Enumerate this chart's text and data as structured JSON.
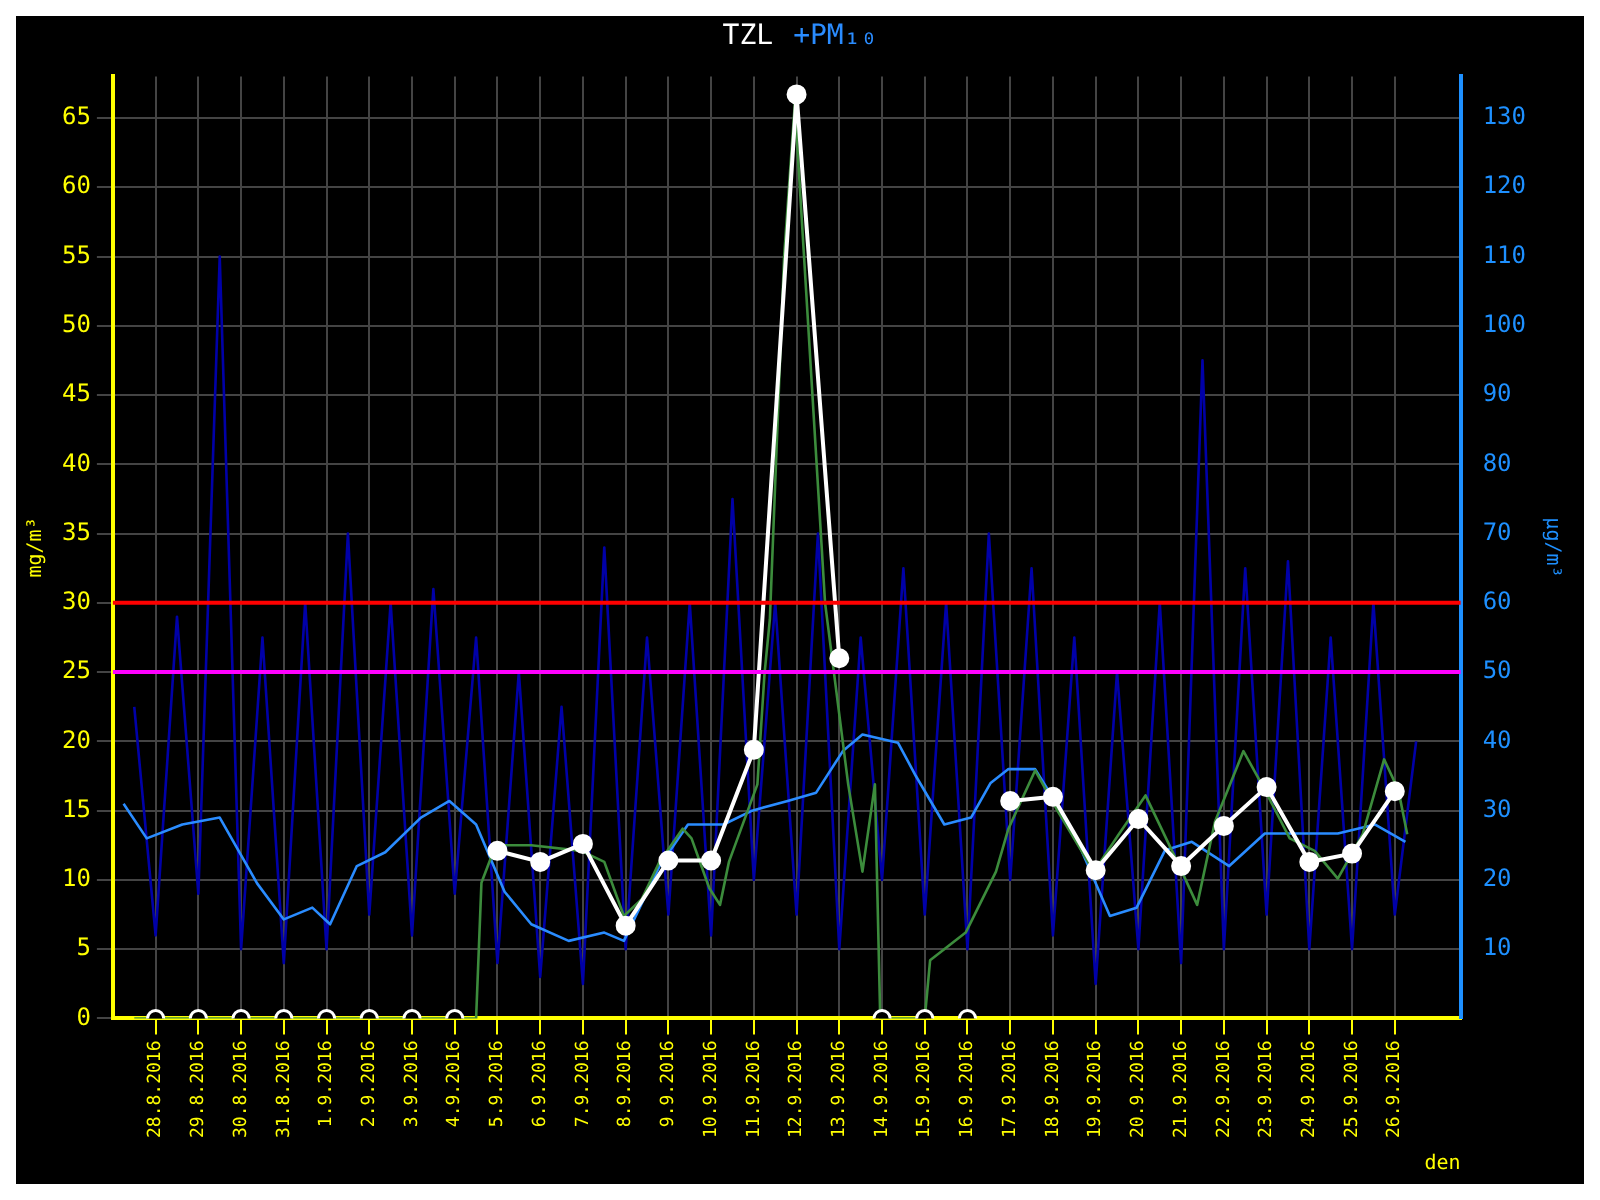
{
  "chart_data": {
    "type": "line",
    "ylabel": "mg/m³",
    "y2label": "µg/m³",
    "xlabel": "den",
    "legend": "top",
    "grid": true,
    "xlim": [
      "2016-08-27T00:00",
      "2016-09-27T13:00"
    ],
    "xticks": [
      {
        "value": "2016-08-28",
        "label": "28.8.2016"
      },
      {
        "value": "2016-08-29",
        "label": "29.8.2016"
      },
      {
        "value": "2016-08-30",
        "label": "30.8.2016"
      },
      {
        "value": "2016-08-31",
        "label": "31.8.2016"
      },
      {
        "value": "2016-09-01",
        "label": "1.9.2016"
      },
      {
        "value": "2016-09-02",
        "label": "2.9.2016"
      },
      {
        "value": "2016-09-03",
        "label": "3.9.2016"
      },
      {
        "value": "2016-09-04",
        "label": "4.9.2016"
      },
      {
        "value": "2016-09-05",
        "label": "5.9.2016"
      },
      {
        "value": "2016-09-06",
        "label": "6.9.2016"
      },
      {
        "value": "2016-09-07",
        "label": "7.9.2016"
      },
      {
        "value": "2016-09-08",
        "label": "8.9.2016"
      },
      {
        "value": "2016-09-09",
        "label": "9.9.2016"
      },
      {
        "value": "2016-09-10",
        "label": "10.9.2016"
      },
      {
        "value": "2016-09-11",
        "label": "11.9.2016"
      },
      {
        "value": "2016-09-12",
        "label": "12.9.2016"
      },
      {
        "value": "2016-09-13",
        "label": "13.9.2016"
      },
      {
        "value": "2016-09-14",
        "label": "14.9.2016"
      },
      {
        "value": "2016-09-15",
        "label": "15.9.2016"
      },
      {
        "value": "2016-09-16",
        "label": "16.9.2016"
      },
      {
        "value": "2016-09-17",
        "label": "17.9.2016"
      },
      {
        "value": "2016-09-18",
        "label": "18.9.2016"
      },
      {
        "value": "2016-09-19",
        "label": "19.9.2016"
      },
      {
        "value": "2016-09-20",
        "label": "20.9.2016"
      },
      {
        "value": "2016-09-21",
        "label": "21.9.2016"
      },
      {
        "value": "2016-09-22",
        "label": "22.9.2016"
      },
      {
        "value": "2016-09-23",
        "label": "23.9.2016"
      },
      {
        "value": "2016-09-24",
        "label": "24.9.2016"
      },
      {
        "value": "2016-09-25",
        "label": "25.9.2016"
      },
      {
        "value": "2016-09-26",
        "label": "26.9.2016"
      }
    ],
    "ylim": [
      0,
      68
    ],
    "yticks": [
      0,
      5,
      10,
      15,
      20,
      25,
      30,
      35,
      40,
      45,
      50,
      55,
      60,
      65
    ],
    "y2lim": [
      0,
      136
    ],
    "y2ticks": [
      10,
      20,
      30,
      40,
      50,
      60,
      70,
      80,
      90,
      100,
      110,
      120,
      130
    ],
    "ref_lines": [
      {
        "axis": "y",
        "value": 30,
        "color": "#ff0000"
      },
      {
        "axis": "y",
        "value": 25,
        "color": "#ff00ff"
      }
    ],
    "series": [
      {
        "axis": "y2",
        "color": "#0000a8",
        "marker": "none",
        "x": [
          "2016-08-27T12:00",
          "2016-08-28T00:00",
          "2016-08-28T12:00",
          "2016-08-29T00:00",
          "2016-08-29T12:00",
          "2016-08-30T00:00",
          "2016-08-30T12:00",
          "2016-08-31T00:00",
          "2016-08-31T12:00",
          "2016-09-01T00:00",
          "2016-09-01T12:00",
          "2016-09-02T00:00",
          "2016-09-02T12:00",
          "2016-09-03T00:00",
          "2016-09-03T12:00",
          "2016-09-04T00:00",
          "2016-09-04T12:00",
          "2016-09-05T00:00",
          "2016-09-05T12:00",
          "2016-09-06T00:00",
          "2016-09-06T12:00",
          "2016-09-07T00:00",
          "2016-09-07T12:00",
          "2016-09-08T00:00",
          "2016-09-08T12:00",
          "2016-09-09T00:00",
          "2016-09-09T12:00",
          "2016-09-10T00:00",
          "2016-09-10T12:00",
          "2016-09-11T00:00",
          "2016-09-11T12:00",
          "2016-09-12T00:00",
          "2016-09-12T12:00",
          "2016-09-13T00:00",
          "2016-09-13T12:00",
          "2016-09-14T00:00",
          "2016-09-14T12:00",
          "2016-09-15T00:00",
          "2016-09-15T12:00",
          "2016-09-16T00:00",
          "2016-09-16T12:00",
          "2016-09-17T00:00",
          "2016-09-17T12:00",
          "2016-09-18T00:00",
          "2016-09-18T12:00",
          "2016-09-19T00:00",
          "2016-09-19T12:00",
          "2016-09-20T00:00",
          "2016-09-20T12:00",
          "2016-09-21T00:00",
          "2016-09-21T12:00",
          "2016-09-22T00:00",
          "2016-09-22T12:00",
          "2016-09-23T00:00",
          "2016-09-23T12:00",
          "2016-09-24T00:00",
          "2016-09-24T12:00",
          "2016-09-25T00:00",
          "2016-09-25T12:00",
          "2016-09-26T00:00",
          "2016-09-26T12:00"
        ],
        "values": [
          45,
          12,
          58,
          18,
          110,
          10,
          55,
          8,
          60,
          10,
          70,
          15,
          60,
          12,
          62,
          18,
          55,
          8,
          50,
          6,
          45,
          5,
          68,
          10,
          55,
          15,
          60,
          12,
          75,
          20,
          60,
          15,
          70,
          10,
          55,
          20,
          65,
          15,
          60,
          10,
          70,
          20,
          65,
          12,
          55,
          5,
          50,
          10,
          60,
          8,
          95,
          10,
          65,
          15,
          66,
          10,
          55,
          10,
          60,
          15,
          40
        ]
      },
      {
        "name": "+PM₁₀",
        "axis": "y2",
        "color": "#2a8cff",
        "marker": "none",
        "x": [
          "2016-08-27T06:00",
          "2016-08-27T19:00",
          "2016-08-28T15:00",
          "2016-08-29T12:00",
          "2016-08-30T09:00",
          "2016-08-31T00:00",
          "2016-08-31T16:00",
          "2016-09-01T02:00",
          "2016-09-01T17:00",
          "2016-09-02T09:00",
          "2016-09-03T05:00",
          "2016-09-03T21:00",
          "2016-09-04T12:00",
          "2016-09-05T04:00",
          "2016-09-05T19:00",
          "2016-09-06T16:00",
          "2016-09-07T12:00",
          "2016-09-07T23:00",
          "2016-09-08T19:00",
          "2016-09-09T11:00",
          "2016-09-10T07:00",
          "2016-09-10T23:00",
          "2016-09-11T19:00",
          "2016-09-12T11:00",
          "2016-09-13T02:00",
          "2016-09-13T13:00",
          "2016-09-14T09:00",
          "2016-09-14T19:00",
          "2016-09-15T11:00",
          "2016-09-16T02:00",
          "2016-09-16T13:00",
          "2016-09-16T23:00",
          "2016-09-17T14:00",
          "2016-09-18T04:00",
          "2016-09-18T16:00",
          "2016-09-19T08:00",
          "2016-09-19T23:00",
          "2016-09-20T15:00",
          "2016-09-21T06:00",
          "2016-09-22T03:00",
          "2016-09-22T23:00",
          "2016-09-23T20:00",
          "2016-09-24T16:00",
          "2016-09-25T13:00",
          "2016-09-26T06:00"
        ],
        "values": [
          31,
          26,
          28,
          29,
          19.5,
          14.3,
          16,
          13.6,
          22,
          24,
          29,
          31.4,
          28,
          18.3,
          13.6,
          11.2,
          12.4,
          11.2,
          22,
          28,
          28,
          30,
          31.4,
          32.6,
          38.6,
          41,
          39.8,
          35,
          28,
          29,
          34,
          36,
          36,
          30.2,
          24.3,
          14.8,
          16,
          24.3,
          25.5,
          22,
          26.7,
          26.7,
          26.7,
          28,
          25.5
        ]
      },
      {
        "axis": "y",
        "color": "#3c8c3c",
        "marker": "none",
        "x": [
          "2016-08-27T12:00",
          "2016-09-04T12:00",
          "2016-09-04T15:00",
          "2016-09-04T23:00",
          "2016-09-05T19:00",
          "2016-09-06T23:00",
          "2016-09-07T12:00",
          "2016-09-07T23:00",
          "2016-09-08T09:00",
          "2016-09-08T19:00",
          "2016-09-09T08:00",
          "2016-09-09T13:00",
          "2016-09-09T23:00",
          "2016-09-10T05:00",
          "2016-09-10T10:00",
          "2016-09-11T02:00",
          "2016-09-11T06:00",
          "2016-09-11T09:00",
          "2016-09-11T17:00",
          "2016-09-11T23:00",
          "2016-09-12T16:00",
          "2016-09-13T05:00",
          "2016-09-13T13:00",
          "2016-09-13T20:00",
          "2016-09-13T23:00",
          "2016-09-15T00:00",
          "2016-09-15T03:00",
          "2016-09-15T23:00",
          "2016-09-16T16:00",
          "2016-09-16T23:00",
          "2016-09-17T14:00",
          "2016-09-18T03:00",
          "2016-09-18T23:00",
          "2016-09-19T13:00",
          "2016-09-20T04:00",
          "2016-09-20T23:00",
          "2016-09-21T09:00",
          "2016-09-21T19:00",
          "2016-09-22T11:00",
          "2016-09-22T23:00",
          "2016-09-23T13:00",
          "2016-09-24T03:00",
          "2016-09-24T16:00",
          "2016-09-25T06:00",
          "2016-09-25T18:00",
          "2016-09-26T02:00",
          "2016-09-26T07:00"
        ],
        "values": [
          0,
          0,
          9.8,
          12.5,
          12.5,
          12.1,
          11.3,
          7.4,
          8.6,
          11.3,
          13.7,
          13,
          9.4,
          8.2,
          11.3,
          16.9,
          24.9,
          28.8,
          55,
          66,
          30,
          16.9,
          10.6,
          16.9,
          0,
          0,
          4.2,
          6.2,
          10.6,
          13.7,
          17.9,
          14.9,
          10.6,
          13.3,
          16.1,
          11,
          8.2,
          14.2,
          19.3,
          16.5,
          13,
          12.1,
          10.1,
          13.3,
          18.7,
          16.5,
          13.3
        ]
      },
      {
        "name": "TZL",
        "axis": "y",
        "color": "#ffffff",
        "marker": "circle",
        "x": [
          "2016-09-05",
          "2016-09-06",
          "2016-09-07",
          "2016-09-08",
          "2016-09-09",
          "2016-09-10",
          "2016-09-11",
          "2016-09-12",
          "2016-09-13",
          "2016-09-14",
          "2016-09-15",
          "2016-09-16",
          "2016-09-17",
          "2016-09-18",
          "2016-09-19",
          "2016-09-20",
          "2016-09-21",
          "2016-09-22",
          "2016-09-23",
          "2016-09-24",
          "2016-09-25",
          "2016-09-26"
        ],
        "values": [
          12.1,
          11.3,
          12.6,
          6.7,
          11.4,
          11.4,
          19.4,
          66.7,
          26,
          null,
          null,
          null,
          15.7,
          16,
          10.7,
          14.4,
          11,
          13.9,
          16.7,
          11.3,
          11.9,
          16.4
        ]
      },
      {
        "type": "scatter",
        "axis": "y",
        "color": "#ffffff",
        "marker": "circle",
        "x": [
          "2016-08-28",
          "2016-08-29",
          "2016-08-30",
          "2016-08-31",
          "2016-09-01",
          "2016-09-02",
          "2016-09-03",
          "2016-09-04",
          "2016-09-14",
          "2016-09-15",
          "2016-09-16"
        ],
        "values": [
          0,
          0,
          0,
          0,
          0,
          0,
          0,
          0,
          0,
          0,
          0
        ]
      }
    ]
  }
}
